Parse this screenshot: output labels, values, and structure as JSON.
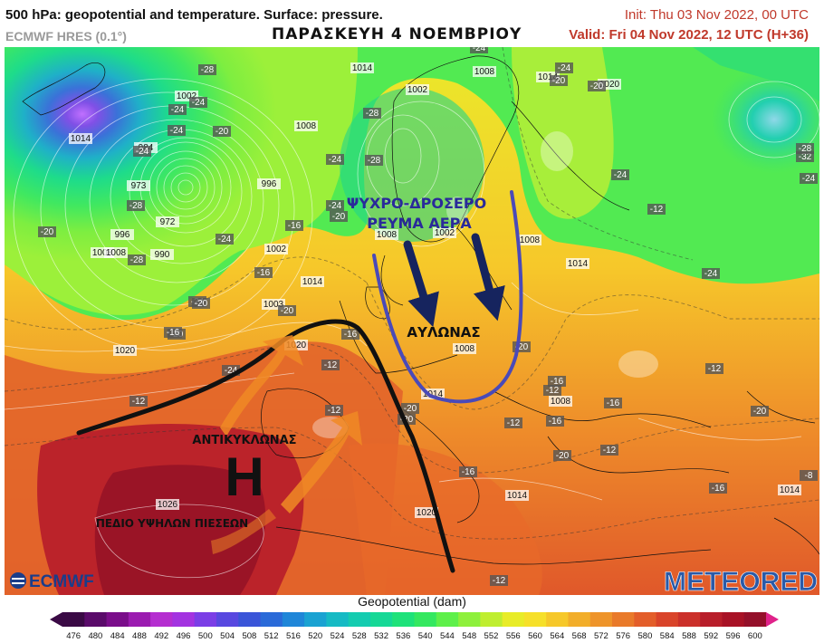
{
  "header": {
    "title": "500 hPa: geopotential and temperature. Surface: pressure.",
    "model": "ECMWF HRES (0.1°)",
    "overlay_title": "ΠΑΡΑΣΚΕΥΗ 4 ΝΟΕΜΒΡΙΟΥ",
    "init": "Init: Thu 03 Nov 2022, 00 UTC",
    "valid": "Valid: Fri 04 Nov 2022, 12 UTC (H+36)"
  },
  "colors": {
    "title_red": "#c0392b",
    "jet_line": "#111111",
    "trough_outline": "#4a4ab8",
    "cold_arrow": "#16245e",
    "warm_arrow": "#f08a24",
    "low_center": "#c070ff"
  },
  "annotations": {
    "cold_air": [
      "ΨΥΧΡΟ-ΔΡΟΣΕΡΟ",
      "ΡΕΥΜΑ ΑΕΡΑ"
    ],
    "trough": "ΑΥΛΩΝΑΣ",
    "anticyclone": "ΑΝΤΙΚΥΚΛΩΝΑΣ",
    "high_symbol": "H",
    "high_pressure_field": "ΠΕΔΙΟ ΥΨΗΛΩΝ ΠΙΕΣΕΩΝ"
  },
  "pressure_labels": [
    "1014",
    "1002",
    "1008",
    "1014",
    "1020",
    "1014",
    "984",
    "973",
    "972",
    "996",
    "990",
    "1008",
    "1002",
    "996",
    "1002",
    "1008",
    "1008",
    "1002",
    "1014",
    "1008",
    "1008",
    "1014",
    "1008",
    "1003",
    "1014",
    "1020",
    "1026",
    "1020",
    "1014",
    "1014",
    "1020",
    "1008"
  ],
  "temperature_labels": [
    "-28",
    "-24",
    "-24",
    "-24",
    "-20",
    "-24",
    "-28",
    "-24",
    "-20",
    "-20",
    "-24",
    "-28",
    "-24",
    "-24",
    "-28",
    "-24",
    "-20",
    "-24",
    "-28",
    "-20",
    "-16",
    "-20",
    "-20",
    "-24",
    "-20",
    "-16",
    "-16",
    "-12",
    "-12",
    "-12",
    "-16",
    "-20",
    "-20",
    "-16",
    "-16",
    "-12",
    "-16",
    "-20",
    "-16",
    "-12",
    "-8",
    "-12",
    "-12",
    "-24",
    "-32",
    "-28",
    "-24",
    "-16",
    "-20",
    "-12",
    "-12",
    "-24",
    "-20"
  ],
  "logos": {
    "left": "ECMWF",
    "right": "METEORED"
  },
  "colorbar": {
    "label": "Geopotential (dam)",
    "ticks": [
      "476",
      "480",
      "484",
      "488",
      "492",
      "496",
      "500",
      "504",
      "508",
      "512",
      "516",
      "520",
      "524",
      "528",
      "532",
      "536",
      "540",
      "544",
      "548",
      "552",
      "556",
      "560",
      "564",
      "568",
      "572",
      "576",
      "580",
      "584",
      "588",
      "592",
      "596",
      "600"
    ],
    "colors": [
      "#3a0a45",
      "#5a0b6a",
      "#7a0d8a",
      "#9b1bb0",
      "#b52ed0",
      "#a333e0",
      "#7b3ee6",
      "#5848e0",
      "#3a55d8",
      "#2a6ad8",
      "#1f86d8",
      "#1aa2d2",
      "#16bac4",
      "#14ccb0",
      "#16d896",
      "#1ee27a",
      "#34e860",
      "#5ef04a",
      "#8ef03c",
      "#bfee30",
      "#e8ec28",
      "#f6e02a",
      "#f6c82a",
      "#f2ae2a",
      "#ee942a",
      "#e97a2a",
      "#e35e2a",
      "#d9442a",
      "#cb302a",
      "#b81e2a",
      "#a81226",
      "#94102a"
    ]
  }
}
